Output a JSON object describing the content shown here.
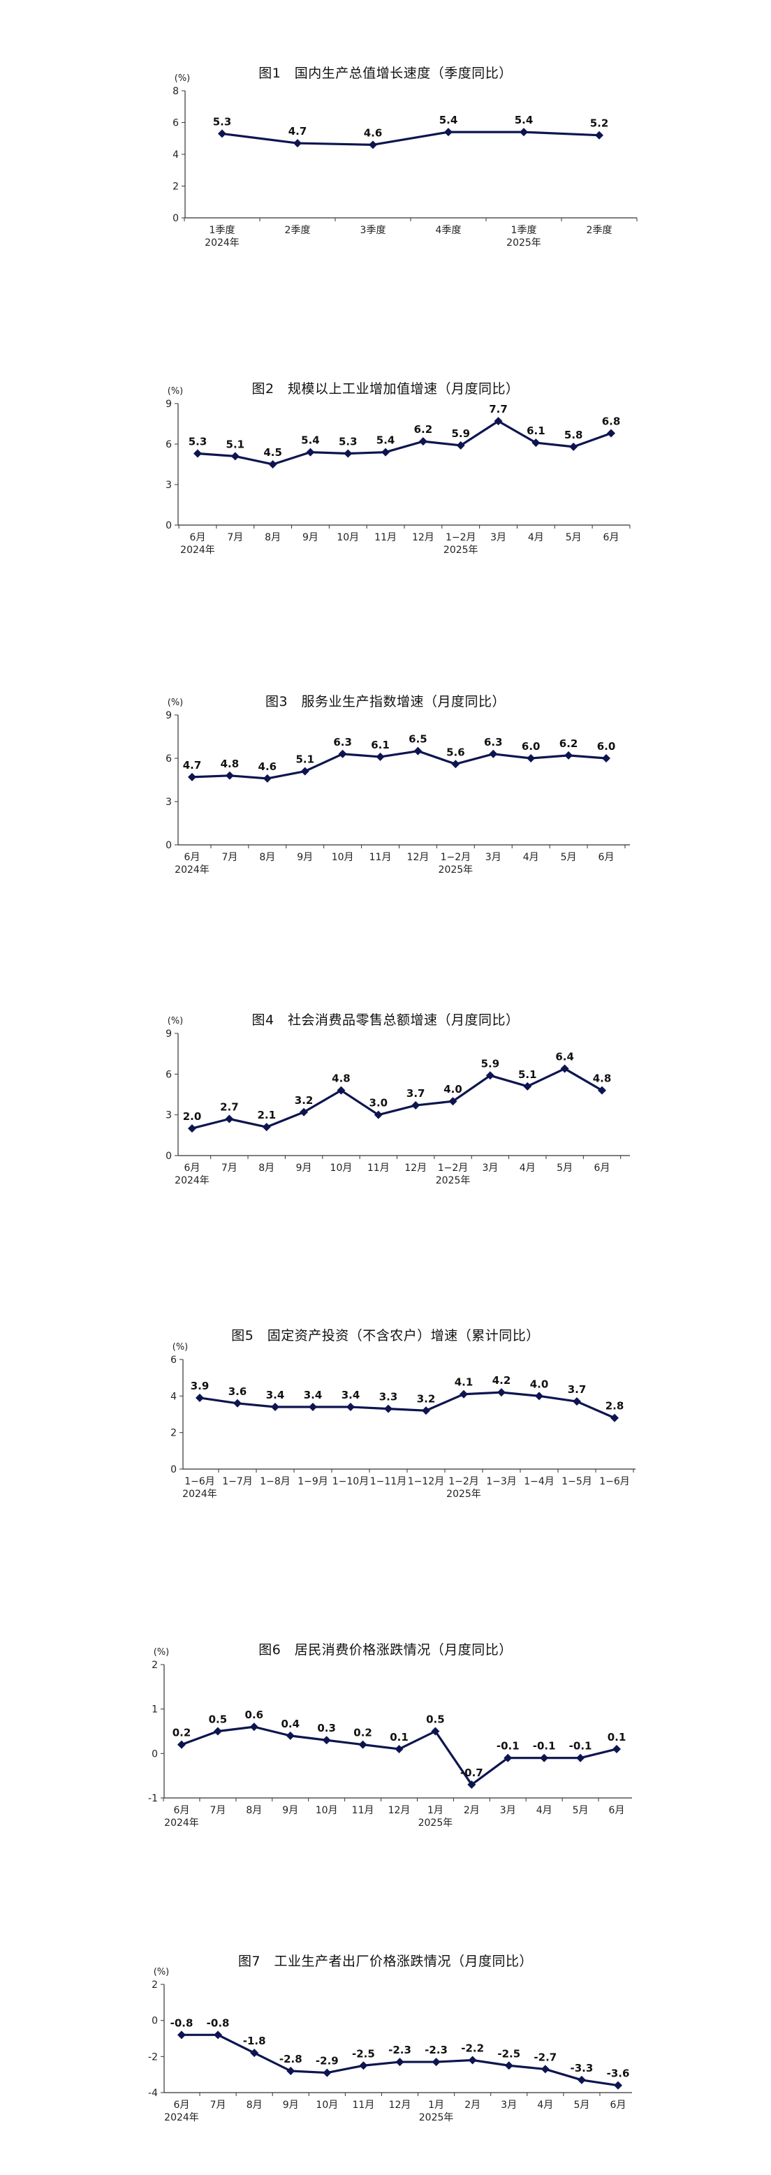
{
  "chart_data": [
    {
      "type": "line",
      "title": "图1　国内生产总值增长速度（季度同比）",
      "unit": "(%)",
      "categories": [
        "1季度",
        "2季度",
        "3季度",
        "4季度",
        "1季度",
        "2季度"
      ],
      "year_labels": [
        "2024年",
        "",
        "",
        "",
        "2025年",
        ""
      ],
      "values": [
        5.3,
        4.7,
        4.6,
        5.4,
        5.4,
        5.2
      ],
      "value_labels": [
        "5.3",
        "4.7",
        "4.6",
        "5.4",
        "5.4",
        "5.2"
      ],
      "ylim": [
        0,
        8
      ],
      "yticks": [
        0,
        2,
        4,
        6,
        8
      ],
      "color": "#0d1550"
    },
    {
      "type": "line",
      "title": "图2　规模以上工业增加值增速（月度同比）",
      "unit": "(%)",
      "categories": [
        "6月",
        "7月",
        "8月",
        "9月",
        "10月",
        "11月",
        "12月",
        "1−2月",
        "3月",
        "4月",
        "5月",
        "6月"
      ],
      "year_labels": [
        "2024年",
        "",
        "",
        "",
        "",
        "",
        "",
        "2025年",
        "",
        "",
        "",
        ""
      ],
      "values": [
        5.3,
        5.1,
        4.5,
        5.4,
        5.3,
        5.4,
        6.2,
        5.9,
        7.7,
        6.1,
        5.8,
        6.8
      ],
      "value_labels": [
        "5.3",
        "5.1",
        "4.5",
        "5.4",
        "5.3",
        "5.4",
        "6.2",
        "5.9",
        "7.7",
        "6.1",
        "5.8",
        "6.8"
      ],
      "ylim": [
        0,
        9
      ],
      "yticks": [
        0,
        3,
        6,
        9
      ],
      "color": "#0d1550"
    },
    {
      "type": "line",
      "title": "图3　服务业生产指数增速（月度同比）",
      "unit": "(%)",
      "categories": [
        "6月",
        "7月",
        "8月",
        "9月",
        "10月",
        "11月",
        "12月",
        "1−2月",
        "3月",
        "4月",
        "5月",
        "6月"
      ],
      "year_labels": [
        "2024年",
        "",
        "",
        "",
        "",
        "",
        "",
        "2025年",
        "",
        "",
        "",
        ""
      ],
      "values": [
        4.7,
        4.8,
        4.6,
        5.1,
        6.3,
        6.1,
        6.5,
        5.6,
        6.3,
        6.0,
        6.2,
        6.0
      ],
      "value_labels": [
        "4.7",
        "4.8",
        "4.6",
        "5.1",
        "6.3",
        "6.1",
        "6.5",
        "5.6",
        "6.3",
        "6.0",
        "6.2",
        "6.0"
      ],
      "ylim": [
        0,
        9
      ],
      "yticks": [
        0,
        3,
        6,
        9
      ],
      "color": "#0d1550"
    },
    {
      "type": "line",
      "title": "图4　社会消费品零售总额增速（月度同比）",
      "unit": "(%)",
      "categories": [
        "6月",
        "7月",
        "8月",
        "9月",
        "10月",
        "11月",
        "12月",
        "1−2月",
        "3月",
        "4月",
        "5月",
        "6月"
      ],
      "year_labels": [
        "2024年",
        "",
        "",
        "",
        "",
        "",
        "",
        "2025年",
        "",
        "",
        "",
        ""
      ],
      "values": [
        2.0,
        2.7,
        2.1,
        3.2,
        4.8,
        3.0,
        3.7,
        4.0,
        5.9,
        5.1,
        6.4,
        4.8
      ],
      "value_labels": [
        "2.0",
        "2.7",
        "2.1",
        "3.2",
        "4.8",
        "3.0",
        "3.7",
        "4.0",
        "5.9",
        "5.1",
        "6.4",
        "4.8"
      ],
      "ylim": [
        0,
        9
      ],
      "yticks": [
        0,
        3,
        6,
        9
      ],
      "color": "#0d1550"
    },
    {
      "type": "line",
      "title": "图5　固定资产投资（不含农户）增速（累计同比）",
      "unit": "(%)",
      "categories": [
        "1−6月",
        "1−7月",
        "1−8月",
        "1−9月",
        "1−10月",
        "1−11月",
        "1−12月",
        "1−2月",
        "1−3月",
        "1−4月",
        "1−5月",
        "1−6月"
      ],
      "year_labels": [
        "2024年",
        "",
        "",
        "",
        "",
        "",
        "",
        "2025年",
        "",
        "",
        "",
        ""
      ],
      "values": [
        3.9,
        3.6,
        3.4,
        3.4,
        3.4,
        3.3,
        3.2,
        4.1,
        4.2,
        4.0,
        3.7,
        2.8
      ],
      "value_labels": [
        "3.9",
        "3.6",
        "3.4",
        "3.4",
        "3.4",
        "3.3",
        "3.2",
        "4.1",
        "4.2",
        "4.0",
        "3.7",
        "2.8"
      ],
      "ylim": [
        0,
        6
      ],
      "yticks": [
        0,
        2,
        4,
        6
      ],
      "color": "#0d1550"
    },
    {
      "type": "line",
      "title": "图6　居民消费价格涨跌情况（月度同比）",
      "unit": "(%)",
      "categories": [
        "6月",
        "7月",
        "8月",
        "9月",
        "10月",
        "11月",
        "12月",
        "1月",
        "2月",
        "3月",
        "4月",
        "5月",
        "6月"
      ],
      "year_labels": [
        "2024年",
        "",
        "",
        "",
        "",
        "",
        "",
        "2025年",
        "",
        "",
        "",
        "",
        ""
      ],
      "values": [
        0.2,
        0.5,
        0.6,
        0.4,
        0.3,
        0.2,
        0.1,
        0.5,
        -0.7,
        -0.1,
        -0.1,
        -0.1,
        0.1
      ],
      "value_labels": [
        "0.2",
        "0.5",
        "0.6",
        "0.4",
        "0.3",
        "0.2",
        "0.1",
        "0.5",
        "-0.7",
        "-0.1",
        "-0.1",
        "-0.1",
        "0.1"
      ],
      "ylim": [
        -1,
        2
      ],
      "yticks": [
        -1,
        0,
        1,
        2
      ],
      "color": "#0d1550"
    },
    {
      "type": "line",
      "title": "图7　工业生产者出厂价格涨跌情况（月度同比）",
      "unit": "(%)",
      "categories": [
        "6月",
        "7月",
        "8月",
        "9月",
        "10月",
        "11月",
        "12月",
        "1月",
        "2月",
        "3月",
        "4月",
        "5月",
        "6月"
      ],
      "year_labels": [
        "2024年",
        "",
        "",
        "",
        "",
        "",
        "",
        "2025年",
        "",
        "",
        "",
        "",
        ""
      ],
      "values": [
        -0.8,
        -0.8,
        -1.8,
        -2.8,
        -2.9,
        -2.5,
        -2.3,
        -2.3,
        -2.2,
        -2.5,
        -2.7,
        -3.3,
        -3.6
      ],
      "value_labels": [
        "-0.8",
        "-0.8",
        "-1.8",
        "-2.8",
        "-2.9",
        "-2.5",
        "-2.3",
        "-2.3",
        "-2.2",
        "-2.5",
        "-2.7",
        "-3.3",
        "-3.6"
      ],
      "ylim": [
        -4,
        2
      ],
      "yticks": [
        -4,
        -2,
        0,
        2
      ],
      "color": "#0d1550"
    }
  ]
}
